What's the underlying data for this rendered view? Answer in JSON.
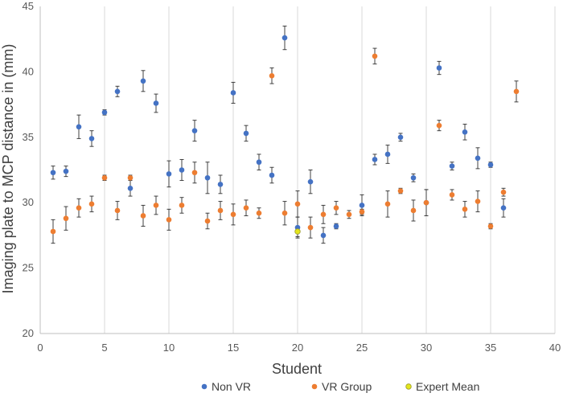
{
  "chart_data": {
    "type": "scatter",
    "title": "",
    "xlabel": "Student",
    "ylabel": "Imaging plate  to MCP distance in (mm)",
    "xlim": [
      0,
      40
    ],
    "ylim": [
      20,
      45
    ],
    "x_ticks": [
      0,
      5,
      10,
      15,
      20,
      25,
      30,
      35,
      40
    ],
    "y_ticks": [
      20,
      25,
      30,
      35,
      40,
      45
    ],
    "grid": "vertical",
    "legend_position": "bottom",
    "series": [
      {
        "name": "Non VR",
        "color": "#4472C4",
        "points": [
          {
            "x": 1,
            "y": 32.3,
            "err": 0.5
          },
          {
            "x": 2,
            "y": 32.4,
            "err": 0.4
          },
          {
            "x": 3,
            "y": 35.8,
            "err": 0.9
          },
          {
            "x": 4,
            "y": 34.9,
            "err": 0.6
          },
          {
            "x": 5,
            "y": 36.9,
            "err": 0.2
          },
          {
            "x": 6,
            "y": 38.5,
            "err": 0.4
          },
          {
            "x": 7,
            "y": 31.1,
            "err": 0.6
          },
          {
            "x": 8,
            "y": 39.3,
            "err": 0.8
          },
          {
            "x": 9,
            "y": 37.6,
            "err": 0.7
          },
          {
            "x": 10,
            "y": 32.2,
            "err": 1.0
          },
          {
            "x": 11,
            "y": 32.5,
            "err": 0.8
          },
          {
            "x": 12,
            "y": 35.5,
            "err": 0.8
          },
          {
            "x": 13,
            "y": 31.9,
            "err": 1.2
          },
          {
            "x": 14,
            "y": 31.4,
            "err": 0.7
          },
          {
            "x": 15,
            "y": 38.4,
            "err": 0.8
          },
          {
            "x": 16,
            "y": 35.3,
            "err": 0.6
          },
          {
            "x": 17,
            "y": 33.1,
            "err": 0.6
          },
          {
            "x": 18,
            "y": 32.1,
            "err": 0.6
          },
          {
            "x": 19,
            "y": 42.6,
            "err": 0.9
          },
          {
            "x": 20,
            "y": 28.1,
            "err": 0.8
          },
          {
            "x": 21,
            "y": 31.6,
            "err": 0.9
          },
          {
            "x": 22,
            "y": 27.5,
            "err": 0.6
          },
          {
            "x": 23,
            "y": 28.2,
            "err": 0.2
          },
          {
            "x": 25,
            "y": 29.8,
            "err": 0.8
          },
          {
            "x": 26,
            "y": 33.3,
            "err": 0.4
          },
          {
            "x": 27,
            "y": 33.7,
            "err": 0.7
          },
          {
            "x": 28,
            "y": 35.0,
            "err": 0.3
          },
          {
            "x": 29,
            "y": 31.9,
            "err": 0.3
          },
          {
            "x": 30,
            "y": 30.0,
            "err": 1.0
          },
          {
            "x": 31,
            "y": 40.3,
            "err": 0.5
          },
          {
            "x": 32,
            "y": 32.8,
            "err": 0.3
          },
          {
            "x": 33,
            "y": 35.4,
            "err": 0.6
          },
          {
            "x": 34,
            "y": 33.4,
            "err": 0.8
          },
          {
            "x": 35,
            "y": 32.9,
            "err": 0.2
          },
          {
            "x": 36,
            "y": 29.6,
            "err": 0.7
          }
        ]
      },
      {
        "name": "VR Group",
        "color": "#ED7D31",
        "points": [
          {
            "x": 1,
            "y": 27.8,
            "err": 0.9
          },
          {
            "x": 2,
            "y": 28.8,
            "err": 0.9
          },
          {
            "x": 3,
            "y": 29.6,
            "err": 0.7
          },
          {
            "x": 4,
            "y": 29.9,
            "err": 0.6
          },
          {
            "x": 5,
            "y": 31.9,
            "err": 0.2
          },
          {
            "x": 6,
            "y": 29.4,
            "err": 0.7
          },
          {
            "x": 7,
            "y": 31.9,
            "err": 0.2
          },
          {
            "x": 8,
            "y": 29.0,
            "err": 0.8
          },
          {
            "x": 9,
            "y": 29.8,
            "err": 0.7
          },
          {
            "x": 10,
            "y": 28.7,
            "err": 0.8
          },
          {
            "x": 11,
            "y": 29.8,
            "err": 0.6
          },
          {
            "x": 12,
            "y": 32.3,
            "err": 0.8
          },
          {
            "x": 13,
            "y": 28.6,
            "err": 0.6
          },
          {
            "x": 14,
            "y": 29.4,
            "err": 0.7
          },
          {
            "x": 15,
            "y": 29.1,
            "err": 0.8
          },
          {
            "x": 16,
            "y": 29.6,
            "err": 0.6
          },
          {
            "x": 17,
            "y": 29.2,
            "err": 0.4
          },
          {
            "x": 18,
            "y": 39.7,
            "err": 0.6
          },
          {
            "x": 19,
            "y": 29.2,
            "err": 0.9
          },
          {
            "x": 20,
            "y": 29.9,
            "err": 1.0
          },
          {
            "x": 21,
            "y": 28.1,
            "err": 0.8
          },
          {
            "x": 22,
            "y": 29.1,
            "err": 0.7
          },
          {
            "x": 23,
            "y": 29.6,
            "err": 0.5
          },
          {
            "x": 24,
            "y": 29.1,
            "err": 0.3
          },
          {
            "x": 25,
            "y": 29.3,
            "err": 0.2
          },
          {
            "x": 26,
            "y": 41.2,
            "err": 0.6
          },
          {
            "x": 27,
            "y": 29.9,
            "err": 1.0
          },
          {
            "x": 28,
            "y": 30.9,
            "err": 0.2
          },
          {
            "x": 29,
            "y": 29.4,
            "err": 0.8
          },
          {
            "x": 30,
            "y": 30.0,
            "err": 1.0
          },
          {
            "x": 31,
            "y": 35.9,
            "err": 0.4
          },
          {
            "x": 32,
            "y": 30.6,
            "err": 0.4
          },
          {
            "x": 33,
            "y": 29.5,
            "err": 0.6
          },
          {
            "x": 34,
            "y": 30.1,
            "err": 0.8
          },
          {
            "x": 35,
            "y": 28.2,
            "err": 0.2
          },
          {
            "x": 36,
            "y": 30.8,
            "err": 0.3
          },
          {
            "x": 37,
            "y": 38.5,
            "err": 0.8
          }
        ]
      },
      {
        "name": "Expert Mean",
        "color": "#E4E61C",
        "points": [
          {
            "x": 20,
            "y": 27.8,
            "err": 0.4
          }
        ]
      }
    ]
  }
}
